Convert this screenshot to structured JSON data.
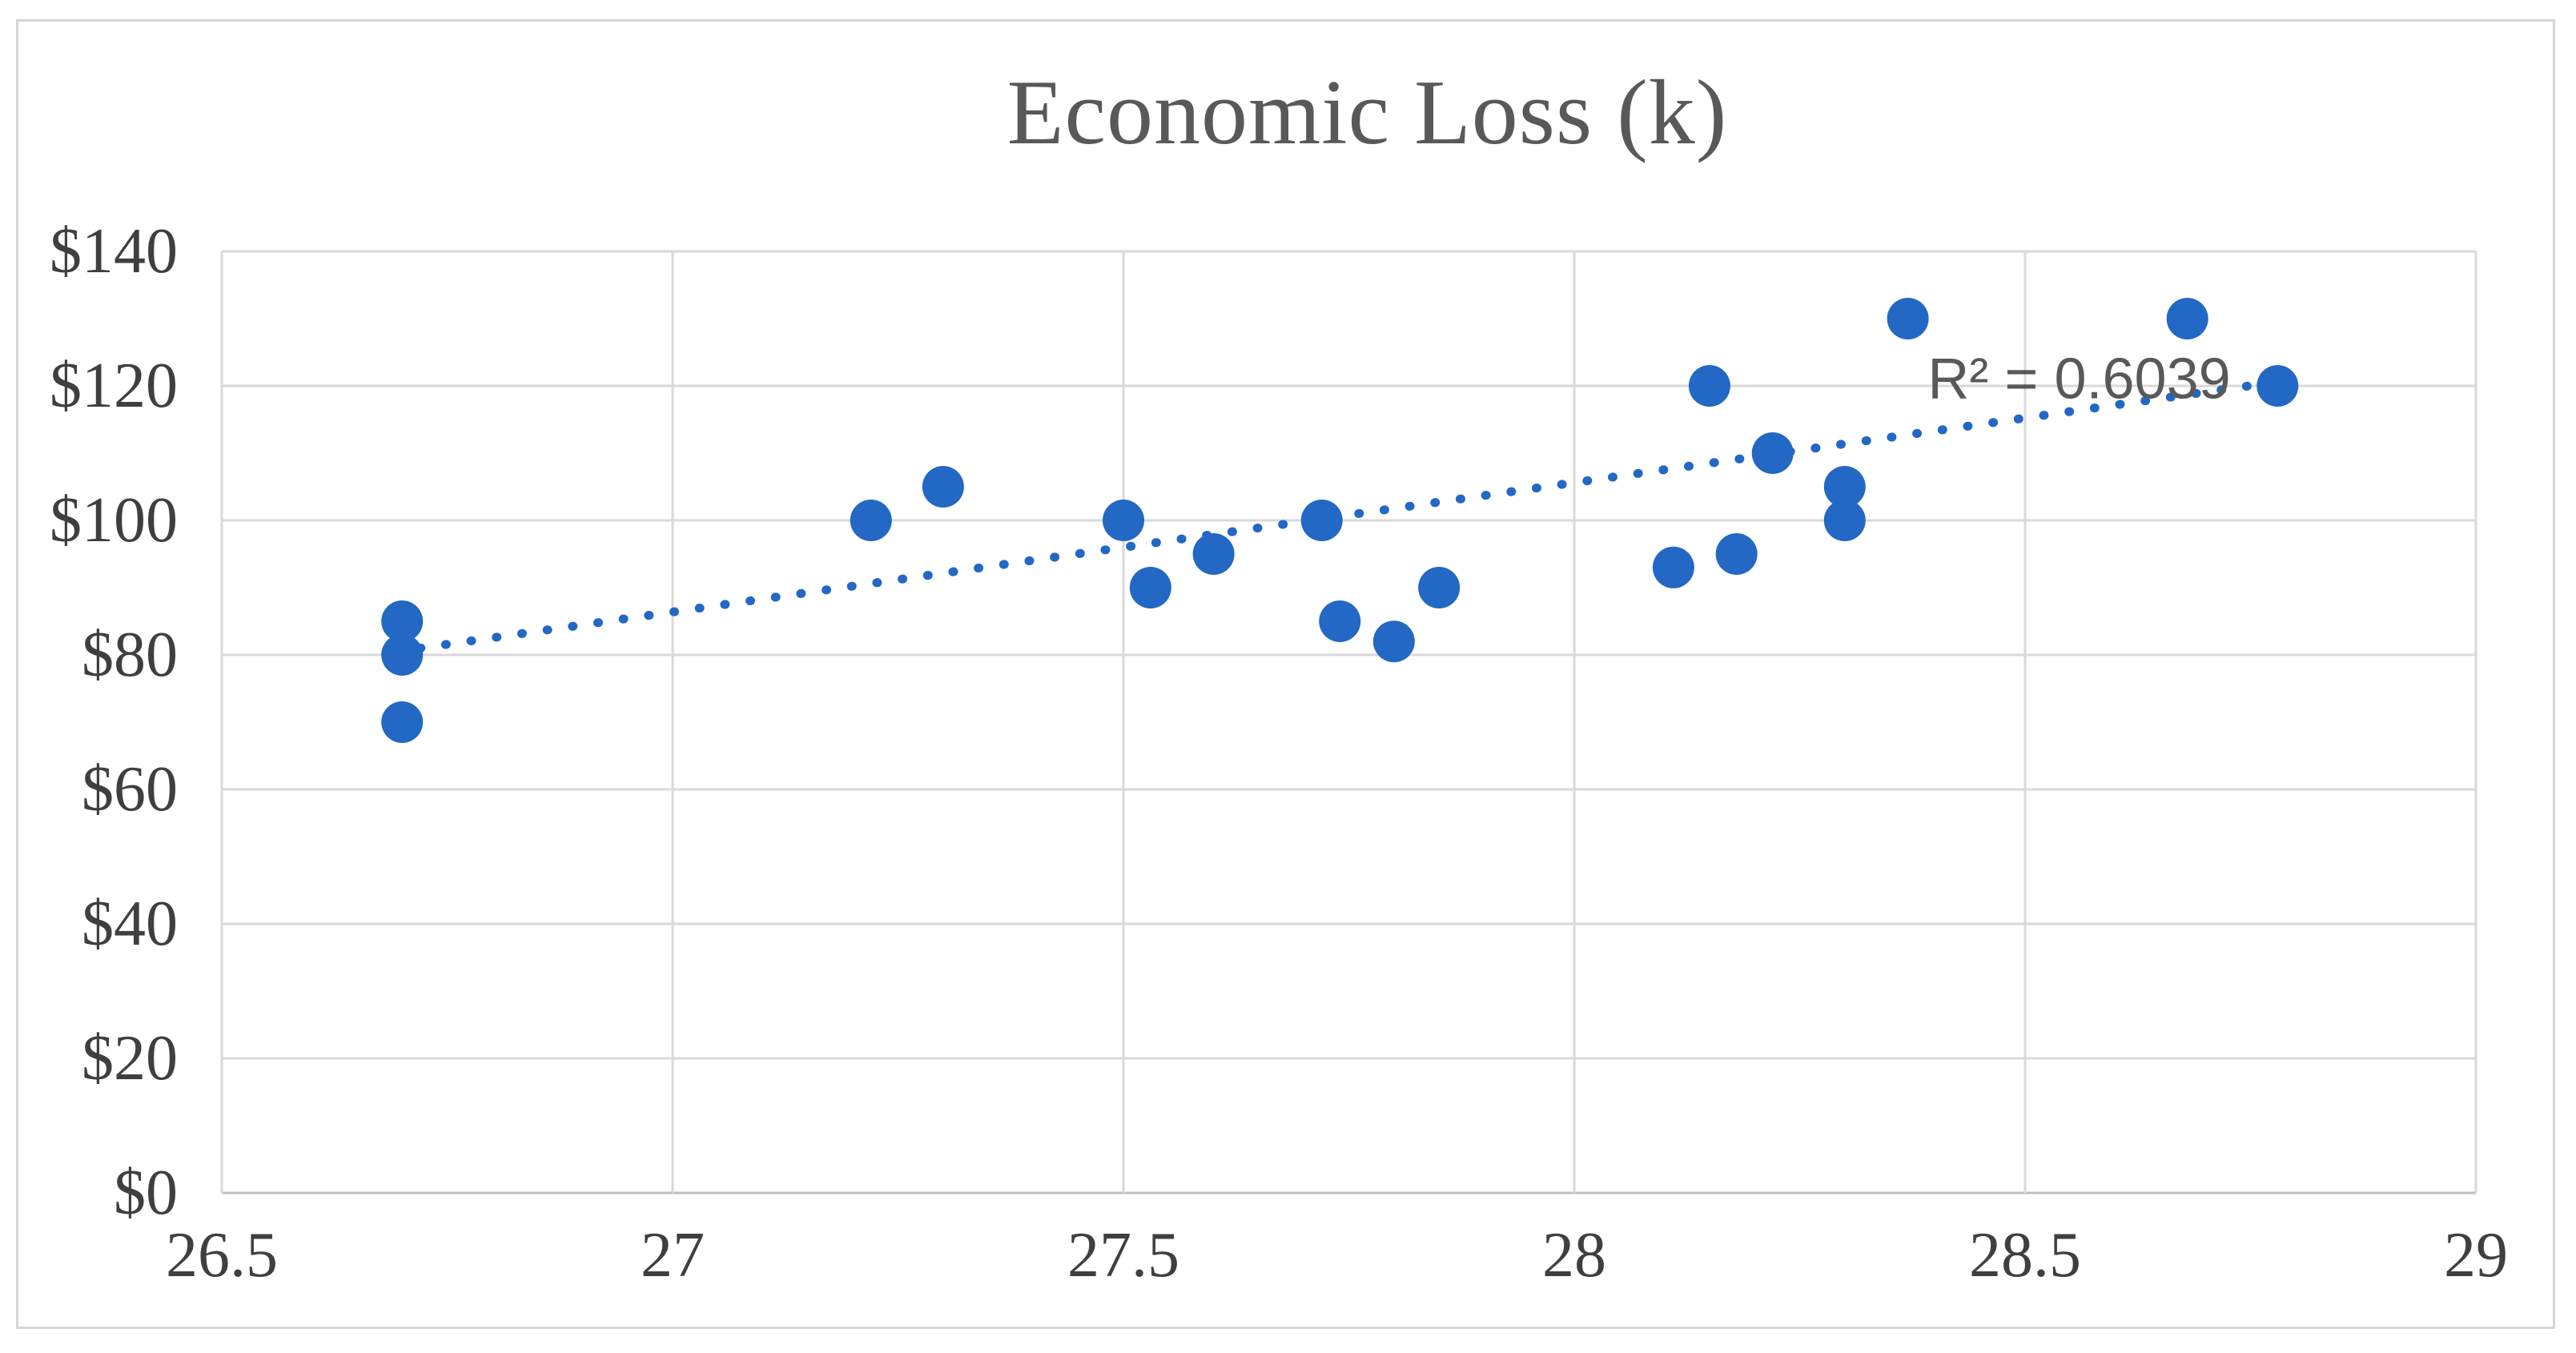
{
  "figure": {
    "title": "Economic Loss (k)"
  },
  "chart_data": {
    "type": "scatter",
    "title": "Economic Loss (k)",
    "xlabel": "",
    "ylabel": "",
    "xlim": [
      26.5,
      29
    ],
    "ylim": [
      0,
      140
    ],
    "grid": true,
    "legend": false,
    "x_ticks": [
      {
        "value": 26.5,
        "label": "26.5"
      },
      {
        "value": 27,
        "label": "27"
      },
      {
        "value": 27.5,
        "label": "27.5"
      },
      {
        "value": 28,
        "label": "28"
      },
      {
        "value": 28.5,
        "label": "28.5"
      },
      {
        "value": 29,
        "label": "29"
      }
    ],
    "y_ticks": [
      {
        "value": 0,
        "label": "$0"
      },
      {
        "value": 20,
        "label": "$20"
      },
      {
        "value": 40,
        "label": "$40"
      },
      {
        "value": 60,
        "label": "$60"
      },
      {
        "value": 80,
        "label": "$80"
      },
      {
        "value": 100,
        "label": "$100"
      },
      {
        "value": 120,
        "label": "$120"
      },
      {
        "value": 140,
        "label": "$140"
      }
    ],
    "points": [
      {
        "x": 26.7,
        "y": 85
      },
      {
        "x": 26.7,
        "y": 80
      },
      {
        "x": 26.7,
        "y": 70
      },
      {
        "x": 27.22,
        "y": 100
      },
      {
        "x": 27.3,
        "y": 105
      },
      {
        "x": 27.5,
        "y": 100
      },
      {
        "x": 27.53,
        "y": 90
      },
      {
        "x": 27.6,
        "y": 95
      },
      {
        "x": 27.72,
        "y": 100
      },
      {
        "x": 27.74,
        "y": 85
      },
      {
        "x": 27.8,
        "y": 82
      },
      {
        "x": 27.85,
        "y": 90
      },
      {
        "x": 28.11,
        "y": 93
      },
      {
        "x": 28.15,
        "y": 120
      },
      {
        "x": 28.18,
        "y": 95
      },
      {
        "x": 28.22,
        "y": 110
      },
      {
        "x": 28.3,
        "y": 105
      },
      {
        "x": 28.3,
        "y": 100
      },
      {
        "x": 28.37,
        "y": 130
      },
      {
        "x": 28.68,
        "y": 130
      },
      {
        "x": 28.78,
        "y": 120
      }
    ],
    "trendline": {
      "style": "dotted",
      "x1": 26.72,
      "y1": 81,
      "x2": 28.8,
      "y2": 121
    },
    "annotation": {
      "text": "R² = 0.6039",
      "x": 28.56,
      "y": 121
    },
    "colors": {
      "marker": "#2268c4",
      "trendline": "#2268c4",
      "gridline": "#d9d9d9",
      "axis_line": "#bfbfbf",
      "title": "#595959",
      "tick_labels": "#3f3f3f",
      "annotation": "#595959",
      "border": "#d6d6d6",
      "background": "#ffffff"
    }
  }
}
